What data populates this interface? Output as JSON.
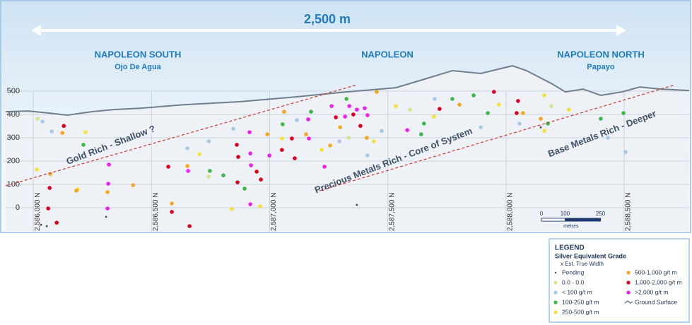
{
  "chart_data": {
    "type": "scatter",
    "title": "2,500 m",
    "regions": [
      {
        "name": "NAPOLEON SOUTH",
        "subtitle": "Ojo De Agua"
      },
      {
        "name": "NAPOLEON"
      },
      {
        "name": "NAPOLEON NORTH",
        "subtitle": "Papayo"
      }
    ],
    "annotations": [
      "Gold Rich - Shallow ?",
      "Precious Metals Rich - Core of System",
      "Base Metals Rich - Deeper"
    ],
    "xlim": [
      2585880,
      2588775
    ],
    "ylim": [
      -100,
      870
    ],
    "xticks": [
      {
        "value": 2586000,
        "label": "2,586,000 N"
      },
      {
        "value": 2586500,
        "label": "2,586,500 N"
      },
      {
        "value": 2587000,
        "label": "2,587,000 N"
      },
      {
        "value": 2587500,
        "label": "2,587,500 N"
      },
      {
        "value": 2588000,
        "label": "2,588,000 N"
      },
      {
        "value": 2588500,
        "label": "2,588,500 N"
      }
    ],
    "yticks": [
      0,
      100,
      200,
      300,
      400,
      500
    ],
    "grid": true,
    "scale_bar": {
      "ticks": [
        0,
        100,
        250
      ],
      "unit": "metres"
    },
    "legend": {
      "title": "LEGEND",
      "subtitle": "Silver Equivalent Grade",
      "note": "x Est. True Width"
    },
    "series": [
      {
        "name": "Pending",
        "color": "#4a4a4a",
        "x": [
          2586057,
          2586308,
          2587369,
          2588147,
          2586033
        ],
        "y": [
          -79,
          -39,
          12,
          345,
          -73
        ]
      },
      {
        "name": "0.0 - 0.0",
        "color": "#d4e48c",
        "x": [
          2586018,
          2586742,
          2587334,
          2587594,
          2588192
        ],
        "y": [
          382,
          133,
          300,
          421,
          436
        ]
      },
      {
        "name": "< 100 g/t m",
        "color": "#a8c8e4",
        "x": [
          2586039,
          2586078,
          2586652,
          2586742,
          2586846,
          2587115,
          2587295,
          2587414,
          2587474,
          2587698,
          2587893,
          2588057,
          2588431,
          2588506
        ],
        "y": [
          370,
          327,
          255,
          285,
          339,
          376,
          285,
          224,
          330,
          467,
          345,
          361,
          300,
          239
        ]
      },
      {
        "name": "100-250 g/t m",
        "color": "#3cb84a",
        "x": [
          2586212,
          2586747,
          2586804,
          2586894,
          2587055,
          2587175,
          2587325,
          2587653,
          2587773,
          2587863,
          2587923,
          2588177,
          2588401,
          2588497,
          2587641
        ],
        "y": [
          270,
          158,
          139,
          82,
          358,
          412,
          467,
          361,
          467,
          482,
          406,
          361,
          382,
          406,
          315
        ]
      },
      {
        "name": "250-500 g/t m",
        "color": "#f6e03a",
        "x": [
          2586015,
          2586221,
          2586188,
          2586840,
          2586703,
          2587052,
          2587220,
          2587441,
          2587534,
          2587695,
          2587970,
          2588162,
          2588266,
          2588162,
          2586960
        ],
        "y": [
          164,
          324,
          79,
          -6,
          230,
          297,
          248,
          285,
          436,
          391,
          442,
          482,
          421,
          330,
          6
        ]
      },
      {
        "name": "500-1,000 g/t m",
        "color": "#f5a623",
        "x": [
          2586123,
          2586072,
          2586182,
          2586314,
          2586422,
          2586586,
          2586652,
          2586990,
          2587061,
          2587154,
          2587256,
          2587298,
          2587453,
          2587411,
          2587803,
          2588072,
          2588147
        ],
        "y": [
          321,
          145,
          73,
          67,
          97,
          18,
          179,
          315,
          412,
          315,
          267,
          345,
          497,
          300,
          442,
          406,
          382
        ]
      },
      {
        "name": "1,000-2,000 g/t m",
        "color": "#e0001e",
        "x": [
          2586129,
          2586069,
          2586063,
          2586099,
          2586571,
          2586586,
          2586661,
          2586861,
          2586867,
          2586864,
          2586945,
          2586963,
          2587052,
          2587094,
          2587106,
          2587280,
          2587354,
          2587384,
          2587719,
          2587949,
          2588051,
          2588045
        ],
        "y": [
          351,
          85,
          -3,
          -64,
          176,
          -18,
          -79,
          270,
          218,
          109,
          155,
          121,
          248,
          297,
          212,
          388,
          400,
          351,
          424,
          497,
          458,
          406
        ]
      },
      {
        "name": ">2,000 g/t m",
        "color": "#f01ef0",
        "x": [
          2586320,
          2586317,
          2586314,
          2586655,
          2586915,
          2586918,
          2586921,
          2586918,
          2586999,
          2587163,
          2587166,
          2587337,
          2587369,
          2587402,
          2587414,
          2587319,
          2587582,
          2587232,
          2587262
        ],
        "y": [
          185,
          103,
          -3,
          158,
          324,
          233,
          182,
          15,
          224,
          379,
          297,
          436,
          421,
          427,
          397,
          391,
          333,
          176,
          436
        ]
      },
      {
        "name": "Ground Surface",
        "color": "#6f7f8f",
        "type": "line",
        "x": [
          2585883,
          2585979,
          2586069,
          2586144,
          2586248,
          2586338,
          2586457,
          2586637,
          2586876,
          2587115,
          2587295,
          2587534,
          2587653,
          2587773,
          2587893,
          2588027,
          2588087,
          2588192,
          2588251,
          2588326,
          2588401,
          2588491,
          2588566,
          2588655,
          2588775
        ],
        "y": [
          412,
          415,
          406,
          397,
          412,
          421,
          427,
          442,
          455,
          476,
          494,
          515,
          551,
          588,
          576,
          609,
          588,
          533,
          497,
          509,
          482,
          497,
          518,
          509,
          503
        ]
      }
    ]
  }
}
